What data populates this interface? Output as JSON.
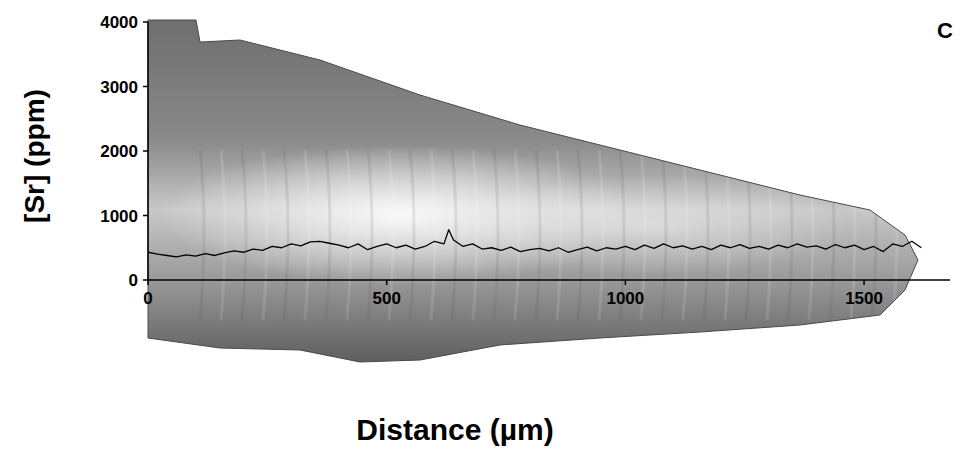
{
  "chart_data": {
    "type": "line",
    "panel_label": "C",
    "x_label": "Distance (µm)",
    "y_label": "[Sr] (ppm)",
    "x": [
      0,
      20,
      40,
      60,
      80,
      100,
      120,
      140,
      160,
      180,
      200,
      220,
      240,
      260,
      280,
      300,
      320,
      340,
      360,
      380,
      400,
      420,
      440,
      460,
      480,
      500,
      520,
      540,
      560,
      580,
      600,
      620,
      630,
      640,
      660,
      680,
      700,
      720,
      740,
      760,
      780,
      800,
      820,
      840,
      860,
      880,
      900,
      920,
      940,
      960,
      980,
      1000,
      1020,
      1040,
      1060,
      1080,
      1100,
      1120,
      1140,
      1160,
      1180,
      1200,
      1220,
      1240,
      1260,
      1280,
      1300,
      1320,
      1340,
      1360,
      1380,
      1400,
      1420,
      1440,
      1460,
      1480,
      1500,
      1520,
      1540,
      1560,
      1580,
      1600,
      1620
    ],
    "values": [
      430,
      400,
      380,
      360,
      390,
      370,
      410,
      380,
      420,
      450,
      430,
      480,
      460,
      520,
      500,
      560,
      530,
      590,
      600,
      570,
      540,
      500,
      560,
      470,
      520,
      560,
      500,
      540,
      480,
      520,
      600,
      560,
      780,
      620,
      520,
      560,
      480,
      500,
      460,
      510,
      440,
      470,
      490,
      450,
      500,
      430,
      470,
      510,
      450,
      500,
      480,
      520,
      470,
      540,
      490,
      560,
      500,
      530,
      480,
      520,
      470,
      540,
      500,
      550,
      490,
      520,
      480,
      540,
      500,
      560,
      510,
      530,
      480,
      550,
      500,
      540,
      470,
      520,
      440,
      560,
      520,
      600,
      500
    ],
    "color": "#000000",
    "xlim": [
      0,
      1680
    ],
    "ylim": [
      0,
      4000
    ],
    "xticks": [
      0,
      500,
      1000,
      1500
    ],
    "yticks": [
      0,
      1000,
      2000,
      3000,
      4000
    ],
    "grid": false
  }
}
